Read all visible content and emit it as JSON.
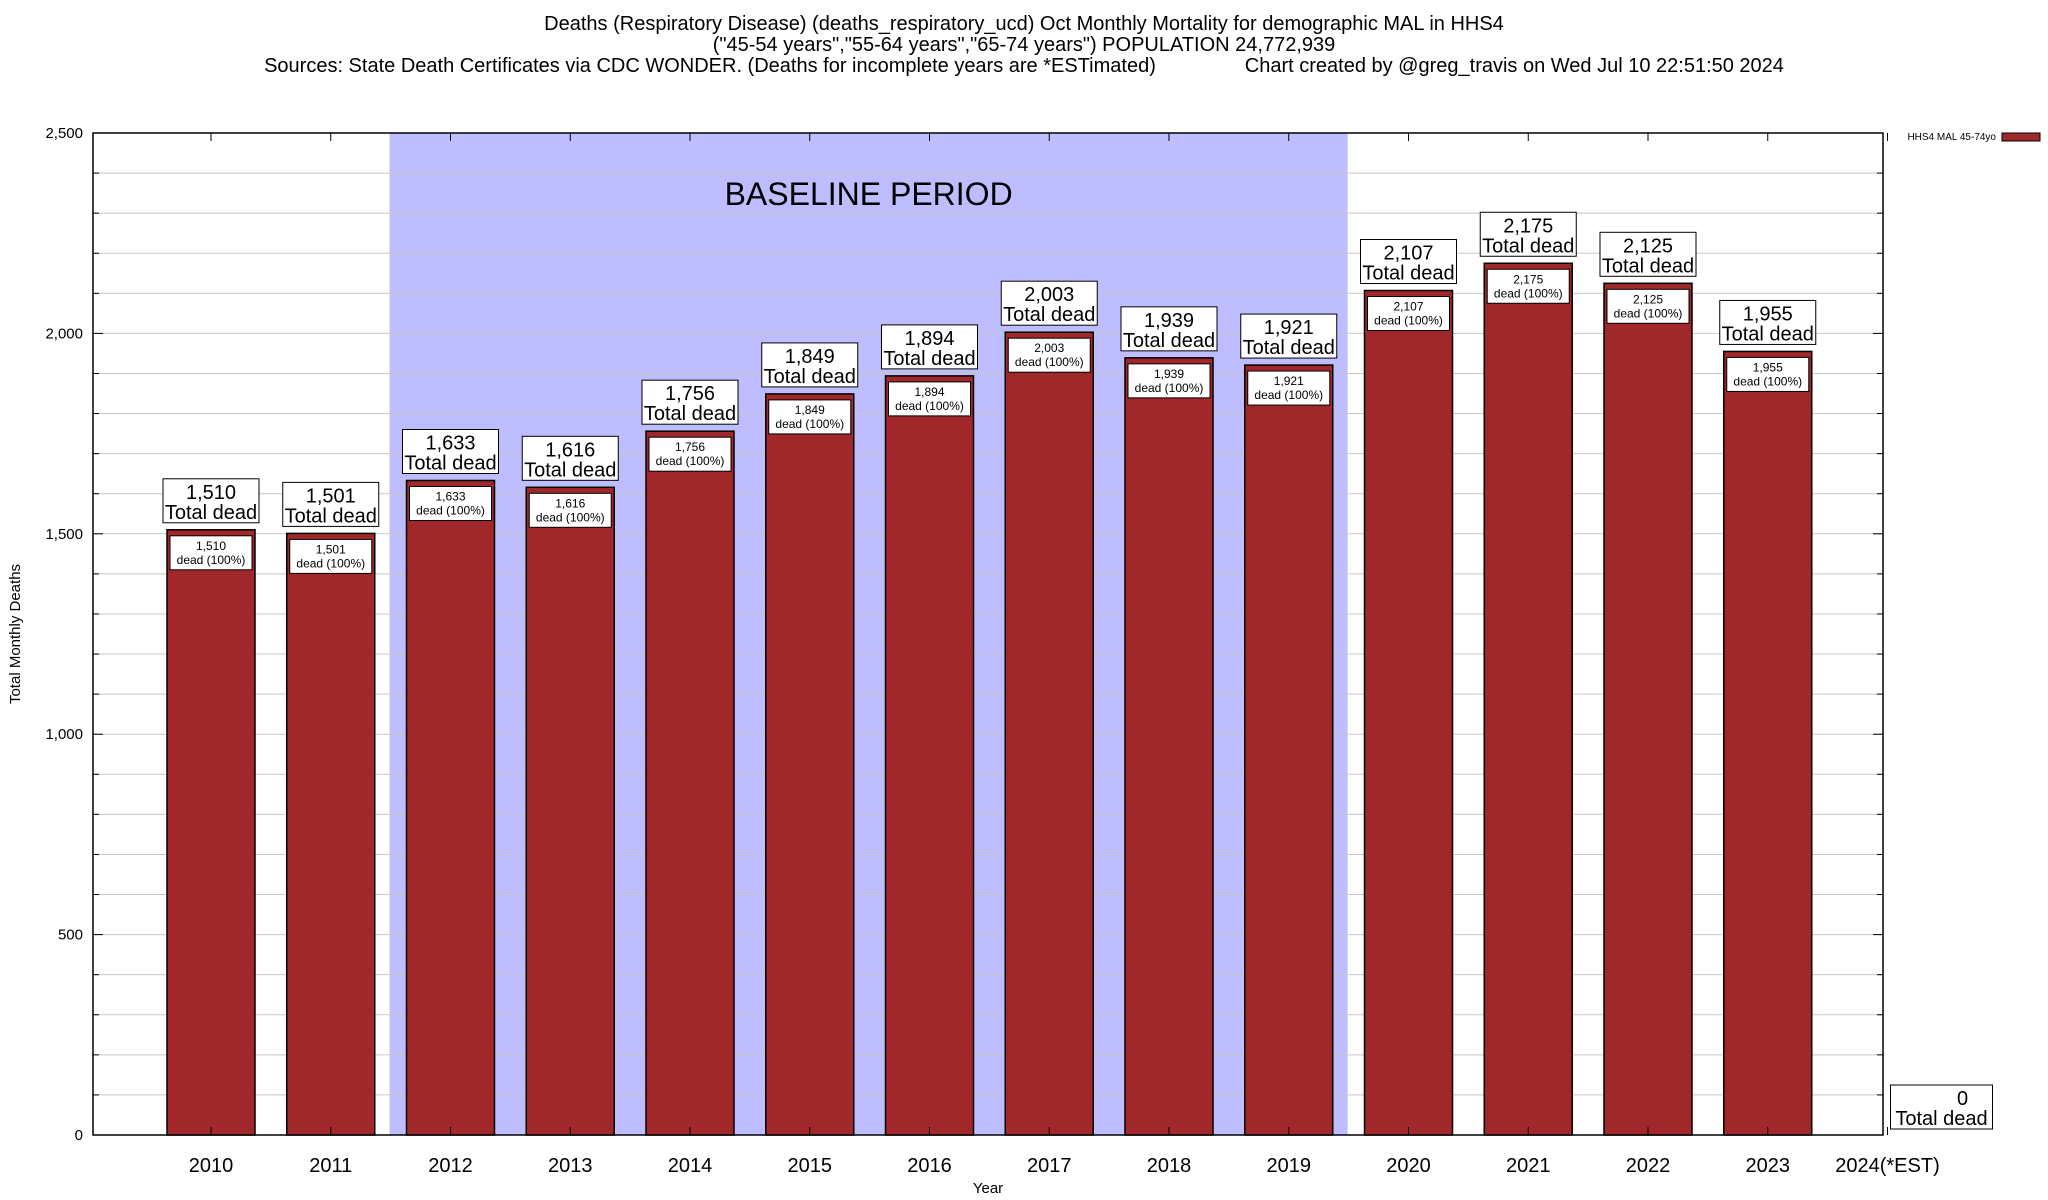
{
  "title_lines": [
    "Deaths (Respiratory Disease) (deaths_respiratory_ucd) Oct Monthly Mortality for demographic MAL in HHS4",
    "(\"45-54 years\",\"55-64 years\",\"65-74 years\") POPULATION 24,772,939",
    "Sources: State Death Certificates via CDC WONDER. (Deaths for incomplete years are *ESTimated)                Chart created by @greg_travis on Wed Jul 10 22:51:50 2024"
  ],
  "colors": {
    "bar": "#a0282a",
    "baseline": "#bdbdff",
    "grid": "#c8c8c8"
  },
  "chart_data": {
    "type": "bar",
    "xlabel": "Year",
    "ylabel": "Total Monthly Deaths",
    "ylim": [
      0,
      2500
    ],
    "yticks": [
      0,
      500,
      1000,
      1500,
      2000,
      2500
    ],
    "ytick_labels": [
      "0",
      "500",
      "1,000",
      "1,500",
      "2,000",
      "2,500"
    ],
    "grid": true,
    "legend": {
      "label": "HHS4 MAL 45-74yo",
      "position": "top-right"
    },
    "baseline": {
      "label": "BASELINE PERIOD",
      "from": "2012",
      "to": "2019"
    },
    "categories": [
      "2010",
      "2011",
      "2012",
      "2013",
      "2014",
      "2015",
      "2016",
      "2017",
      "2018",
      "2019",
      "2020",
      "2021",
      "2022",
      "2023",
      "2024(*EST)"
    ],
    "series": [
      {
        "name": "HHS4 MAL 45-74yo",
        "values": [
          1510,
          1501,
          1633,
          1616,
          1756,
          1849,
          1894,
          2003,
          1939,
          1921,
          2107,
          2175,
          2125,
          1955,
          0
        ]
      }
    ],
    "value_labels": [
      "1,510",
      "1,501",
      "1,633",
      "1,616",
      "1,756",
      "1,849",
      "1,894",
      "2,003",
      "1,939",
      "1,921",
      "2,107",
      "2,175",
      "2,125",
      "1,955",
      "0"
    ],
    "top_label_suffix": "Total dead",
    "inner_label_suffix": "dead (100%)"
  }
}
